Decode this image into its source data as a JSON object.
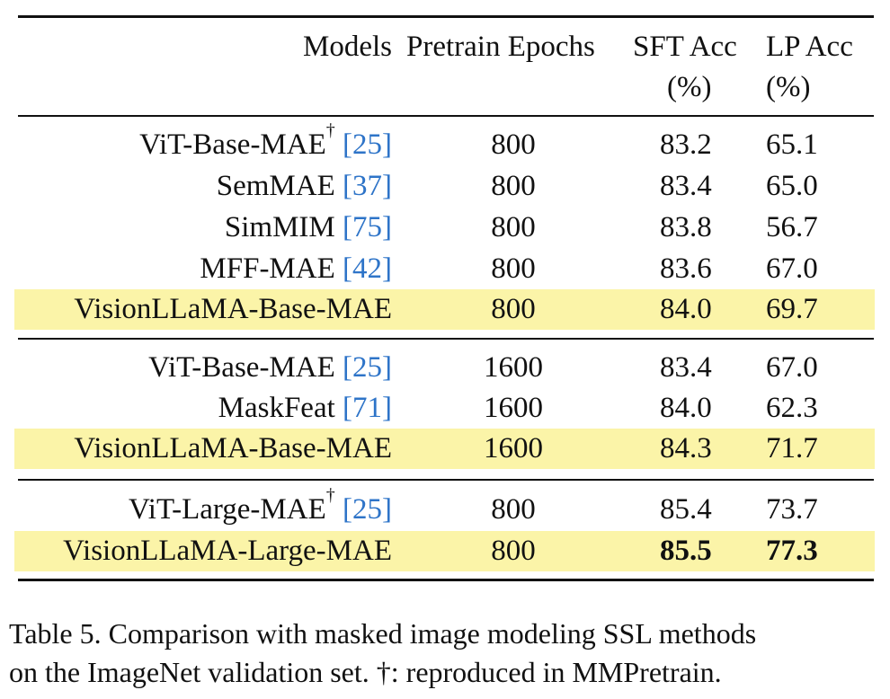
{
  "table": {
    "headers": {
      "models": "Models",
      "pretrain_epochs": "Pretrain Epochs",
      "sft_acc_line1": "SFT Acc",
      "sft_acc_line2": "(%)",
      "lp_acc_line1": "LP Acc",
      "lp_acc_line2": "(%)"
    },
    "rows": [
      {
        "model": "ViT-Base-MAE",
        "dagger": "†",
        "ref": "[25]",
        "epochs": "800",
        "sft": "83.2",
        "lp": "65.1"
      },
      {
        "model": "SemMAE",
        "ref": "[37]",
        "epochs": "800",
        "sft": "83.4",
        "lp": "65.0"
      },
      {
        "model": "SimMIM",
        "ref": "[75]",
        "epochs": "800",
        "sft": "83.8",
        "lp": "56.7"
      },
      {
        "model": "MFF-MAE",
        "ref": "[42]",
        "epochs": "800",
        "sft": "83.6",
        "lp": "67.0"
      },
      {
        "model": "VisionLLaMA-Base-MAE",
        "epochs": "800",
        "sft": "84.0",
        "lp": "69.7",
        "highlight": true
      },
      {
        "model": "ViT-Base-MAE",
        "ref": "[25]",
        "epochs": "1600",
        "sft": "83.4",
        "lp": "67.0"
      },
      {
        "model": "MaskFeat",
        "ref": "[71]",
        "epochs": "1600",
        "sft": "84.0",
        "lp": "62.3"
      },
      {
        "model": "VisionLLaMA-Base-MAE",
        "epochs": "1600",
        "sft": "84.3",
        "lp": "71.7",
        "highlight": true
      },
      {
        "model": "ViT-Large-MAE",
        "dagger": "†",
        "ref": "[25]",
        "epochs": "800",
        "sft": "85.4",
        "lp": "73.7"
      },
      {
        "model": "VisionLLaMA-Large-MAE",
        "epochs": "800",
        "sft": "85.5",
        "lp": "77.3",
        "highlight": true,
        "bold_values": true
      }
    ]
  },
  "caption": {
    "line1": "Table 5. Comparison with masked image modeling SSL methods",
    "line2": "on the ImageNet validation set. †: reproduced in MMPretrain."
  },
  "colors": {
    "highlight": "#fbf4a8",
    "reference_link": "#2e74c8",
    "text": "#111111"
  }
}
